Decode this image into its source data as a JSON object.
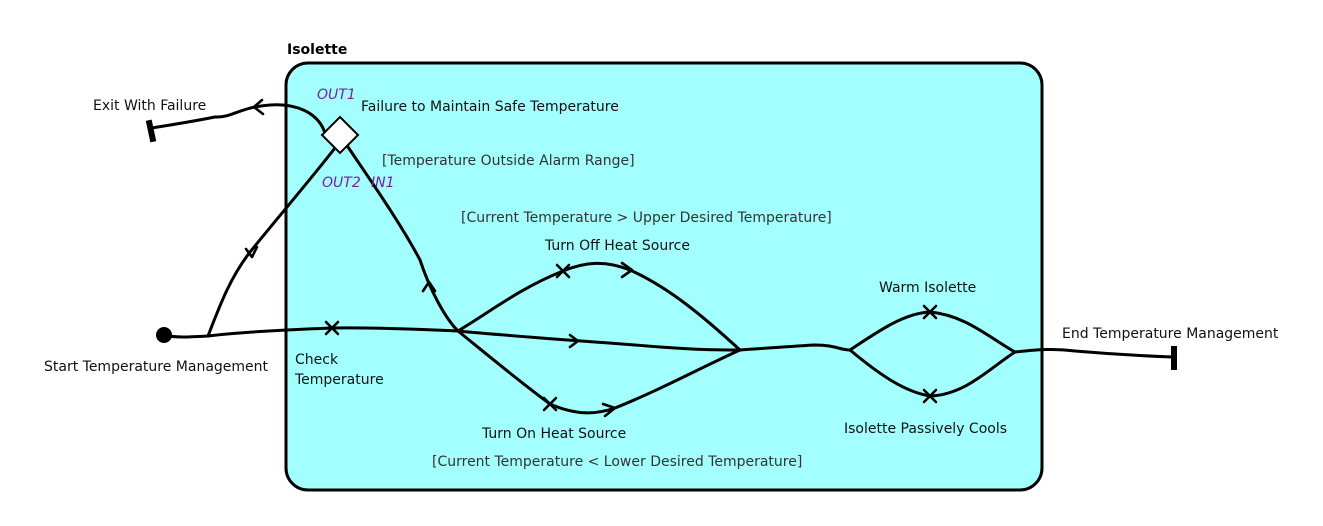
{
  "diagram": {
    "container_title": "Isolette",
    "start_label": "Start Temperature Management",
    "exit_failure_label": "Exit With Failure",
    "end_label": "End Temperature Management",
    "check_label_line1": "Check",
    "check_label_line2": "Temperature",
    "turn_off_label": "Turn Off Heat Source",
    "turn_on_label": "Turn On Heat Source",
    "warm_label": "Warm Isolette",
    "cools_label": "Isolette Passively Cools",
    "failure_label": "Failure to Maintain Safe Temperature",
    "guard_alarm": "[Temperature Outside Alarm Range]",
    "guard_upper": "[Current Temperature > Upper Desired Temperature]",
    "guard_lower": "[Current Temperature < Lower Desired Temperature]",
    "port_out1": "OUT1",
    "port_out2": "OUT2",
    "port_in1": "IN1"
  },
  "colors": {
    "container_fill": "#a2fffe",
    "port_text": "#7a1fa2",
    "line": "#000000"
  }
}
